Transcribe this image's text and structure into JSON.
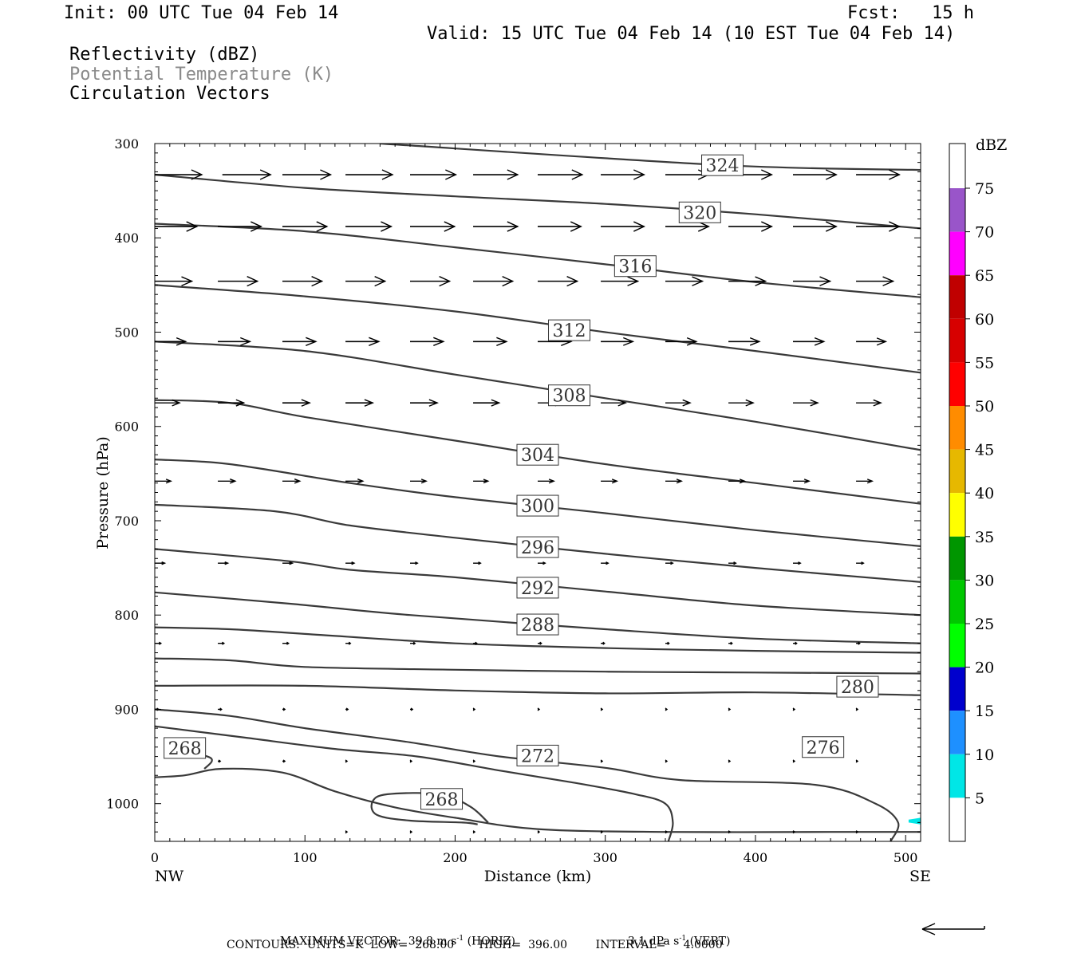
{
  "header": {
    "init": "Init: 00 UTC Tue 04 Feb 14",
    "fcst_label": "Fcst:",
    "fcst_value": "15 h",
    "valid": "Valid: 15 UTC Tue 04 Feb 14 (10 EST Tue 04 Feb 14)",
    "field1": "Reflectivity (dBZ)",
    "field2": "Potential Temperature (K)",
    "field3": "Circulation Vectors"
  },
  "footer": {
    "max_vector_label": "MAXIMUM VECTOR:",
    "horiz_value": "39.8 m s",
    "horiz_exp": "-1",
    "horiz_tag": "(HORIZ)",
    "vert_value": "3.1 dPa s",
    "vert_exp": "-1",
    "vert_tag": "(VERT)",
    "contours_line": "CONTOURS:  UNITS=K  LOW=  268.00       HIGH=  396.00        INTERVAL=     4.0000"
  },
  "colors": {
    "contour": "#3a3a3a",
    "vector": "#000000",
    "dbz_scale": [
      "#ffffff",
      "#00e6e6",
      "#1e90ff",
      "#0000cd",
      "#00ff00",
      "#00c800",
      "#009600",
      "#ffff00",
      "#e6b800",
      "#ff8c00",
      "#ff0000",
      "#d70000",
      "#c00000",
      "#ff00ff",
      "#9955c9",
      "#ffffff"
    ]
  },
  "chart_data": {
    "type": "contour",
    "xlabel": "Distance (km)",
    "ylabel": "Pressure (hPa)",
    "x_left_label": "NW",
    "x_right_label": "SE",
    "xlim": [
      0,
      510
    ],
    "ylim": [
      300,
      1040
    ],
    "x_ticks": [
      0,
      100,
      200,
      300,
      400,
      500
    ],
    "y_ticks": [
      300,
      400,
      500,
      600,
      700,
      800,
      900,
      1000
    ],
    "colorbar": {
      "title": "dBZ",
      "levels": [
        5,
        10,
        15,
        20,
        25,
        30,
        35,
        40,
        45,
        50,
        55,
        60,
        65,
        70,
        75
      ]
    },
    "isentropes": [
      {
        "label": "324",
        "label_at": [
          378,
          323
        ],
        "points": [
          [
            150,
            300
          ],
          [
            380,
            323
          ],
          [
            510,
            328
          ]
        ]
      },
      {
        "label": "320",
        "label_at": [
          363,
          373
        ],
        "points": [
          [
            0,
            333
          ],
          [
            100,
            347
          ],
          [
            200,
            356
          ],
          [
            300,
            364
          ],
          [
            400,
            375
          ],
          [
            510,
            390
          ]
        ]
      },
      {
        "label": "316",
        "label_at": [
          320,
          430
        ],
        "points": [
          [
            0,
            385
          ],
          [
            100,
            393
          ],
          [
            200,
            410
          ],
          [
            300,
            428
          ],
          [
            400,
            447
          ],
          [
            510,
            463
          ]
        ]
      },
      {
        "label": "312",
        "label_at": [
          276,
          498
        ],
        "points": [
          [
            0,
            450
          ],
          [
            100,
            462
          ],
          [
            200,
            478
          ],
          [
            300,
            500
          ],
          [
            400,
            520
          ],
          [
            510,
            543
          ]
        ]
      },
      {
        "label": "308",
        "label_at": [
          276,
          567
        ],
        "points": [
          [
            0,
            510
          ],
          [
            100,
            520
          ],
          [
            200,
            545
          ],
          [
            300,
            570
          ],
          [
            400,
            595
          ],
          [
            510,
            625
          ]
        ]
      },
      {
        "label": "304",
        "label_at": [
          255,
          630
        ],
        "points": [
          [
            0,
            572
          ],
          [
            50,
            575
          ],
          [
            100,
            590
          ],
          [
            200,
            615
          ],
          [
            300,
            640
          ],
          [
            400,
            660
          ],
          [
            510,
            682
          ]
        ]
      },
      {
        "label": "300",
        "label_at": [
          255,
          684
        ],
        "points": [
          [
            0,
            635
          ],
          [
            50,
            640
          ],
          [
            130,
            660
          ],
          [
            200,
            675
          ],
          [
            300,
            692
          ],
          [
            400,
            710
          ],
          [
            510,
            727
          ]
        ]
      },
      {
        "label": "296",
        "label_at": [
          255,
          728
        ],
        "points": [
          [
            0,
            683
          ],
          [
            80,
            690
          ],
          [
            130,
            705
          ],
          [
            200,
            718
          ],
          [
            300,
            735
          ],
          [
            400,
            750
          ],
          [
            510,
            765
          ]
        ]
      },
      {
        "label": "292",
        "label_at": [
          255,
          771
        ],
        "points": [
          [
            0,
            730
          ],
          [
            90,
            743
          ],
          [
            130,
            752
          ],
          [
            200,
            760
          ],
          [
            300,
            775
          ],
          [
            400,
            790
          ],
          [
            510,
            800
          ]
        ]
      },
      {
        "label": "288",
        "label_at": [
          255,
          810
        ],
        "points": [
          [
            0,
            776
          ],
          [
            90,
            788
          ],
          [
            170,
            800
          ],
          [
            300,
            815
          ],
          [
            400,
            825
          ],
          [
            510,
            830
          ]
        ]
      },
      {
        "label": "",
        "label_at": null,
        "points": [
          [
            0,
            813
          ],
          [
            50,
            815
          ],
          [
            100,
            820
          ],
          [
            200,
            830
          ],
          [
            300,
            835
          ],
          [
            400,
            838
          ],
          [
            510,
            840
          ]
        ]
      },
      {
        "label": "",
        "label_at": null,
        "points": [
          [
            0,
            846
          ],
          [
            50,
            848
          ],
          [
            100,
            855
          ],
          [
            200,
            858
          ],
          [
            300,
            860
          ],
          [
            400,
            861
          ],
          [
            510,
            862
          ]
        ]
      },
      {
        "label": "280",
        "label_at": [
          468,
          876
        ],
        "points": [
          [
            0,
            875
          ],
          [
            100,
            875
          ],
          [
            200,
            880
          ],
          [
            300,
            883
          ],
          [
            400,
            882
          ],
          [
            510,
            885
          ]
        ]
      },
      {
        "label": "276",
        "label_at": [
          445,
          940
        ],
        "points": [
          [
            0,
            900
          ],
          [
            50,
            907
          ],
          [
            100,
            920
          ],
          [
            170,
            935
          ],
          [
            230,
            950
          ],
          [
            300,
            962
          ],
          [
            350,
            975
          ],
          [
            440,
            980
          ],
          [
            480,
            1000
          ],
          [
            495,
            1020
          ],
          [
            490,
            1040
          ]
        ]
      },
      {
        "label": "272",
        "label_at": [
          255,
          949
        ],
        "points": [
          [
            0,
            918
          ],
          [
            60,
            930
          ],
          [
            120,
            942
          ],
          [
            175,
            950
          ],
          [
            230,
            965
          ],
          [
            280,
            978
          ],
          [
            320,
            990
          ],
          [
            340,
            1000
          ],
          [
            345,
            1020
          ],
          [
            342,
            1040
          ]
        ]
      },
      {
        "label": "268",
        "label_at": [
          20,
          941
        ],
        "points": [
          [
            20,
            945
          ],
          [
            35,
            950
          ],
          [
            38,
            955
          ],
          [
            33,
            963
          ]
        ]
      },
      {
        "label": "268",
        "label_at": [
          191,
          995
        ],
        "points": [
          [
            222,
            1020
          ],
          [
            210,
            1003
          ],
          [
            190,
            990
          ],
          [
            155,
            990
          ],
          [
            145,
            998
          ],
          [
            148,
            1012
          ],
          [
            170,
            1018
          ],
          [
            205,
            1020
          ],
          [
            215,
            1022
          ]
        ]
      },
      {
        "label": "",
        "label_at": null,
        "points": [
          [
            0,
            972
          ],
          [
            20,
            970
          ],
          [
            45,
            963
          ],
          [
            85,
            967
          ],
          [
            120,
            987
          ],
          [
            160,
            1004
          ],
          [
            200,
            1015
          ],
          [
            255,
            1027
          ],
          [
            340,
            1030
          ],
          [
            450,
            1030
          ],
          [
            510,
            1030
          ]
        ]
      }
    ],
    "vector_rows": [
      {
        "p": 333,
        "x": [
          0,
          45,
          85,
          127,
          170,
          212,
          255,
          297,
          340,
          382,
          425,
          467
        ],
        "u": [
          38,
          39,
          39,
          38,
          37,
          36,
          36,
          35,
          35,
          35,
          35,
          35
        ]
      },
      {
        "p": 388,
        "x": [
          0,
          42,
          85,
          127,
          170,
          212,
          255,
          297,
          340,
          382,
          425,
          467
        ],
        "u": [
          34,
          35,
          36,
          37,
          36,
          36,
          35,
          35,
          35,
          35,
          35,
          35
        ]
      },
      {
        "p": 446,
        "x": [
          0,
          42,
          85,
          127,
          170,
          212,
          255,
          297,
          340,
          382,
          425,
          467
        ],
        "u": [
          30,
          32,
          32,
          32,
          32,
          32,
          32,
          30,
          30,
          30,
          30,
          30
        ]
      },
      {
        "p": 510,
        "x": [
          0,
          42,
          85,
          127,
          170,
          212,
          255,
          297,
          340,
          382,
          425,
          467
        ],
        "u": [
          25,
          26,
          27,
          27,
          27,
          27,
          27,
          26,
          25,
          25,
          25,
          24
        ]
      },
      {
        "p": 575,
        "x": [
          0,
          42,
          85,
          127,
          170,
          212,
          255,
          297,
          340,
          382,
          425,
          467
        ],
        "u": [
          20,
          21,
          22,
          22,
          22,
          21,
          20,
          20,
          20,
          20,
          20,
          20
        ]
      },
      {
        "p": 658,
        "x": [
          0,
          42,
          85,
          127,
          170,
          212,
          255,
          297,
          340,
          382,
          425,
          467
        ],
        "u": [
          13,
          14,
          14,
          14,
          13,
          12,
          13,
          13,
          13,
          13,
          13,
          13
        ]
      },
      {
        "p": 745,
        "x": [
          0,
          42,
          85,
          127,
          170,
          212,
          255,
          297,
          340,
          382,
          425,
          467
        ],
        "u": [
          8,
          8,
          8,
          7,
          6,
          6,
          6,
          6,
          6,
          6,
          6,
          6
        ]
      },
      {
        "p": 830,
        "x": [
          0,
          42,
          85,
          127,
          170,
          212,
          255,
          297,
          340,
          382,
          425,
          467
        ],
        "u": [
          5,
          5,
          5,
          4,
          4,
          3,
          3,
          3,
          3,
          3,
          3,
          3
        ]
      },
      {
        "p": 900,
        "x": [
          0,
          42,
          85,
          127,
          170,
          212,
          255,
          297,
          340,
          382,
          425,
          467
        ],
        "u": [
          3,
          3,
          2,
          2,
          2,
          1,
          1,
          1,
          1,
          1,
          1,
          1
        ]
      },
      {
        "p": 955,
        "x": [
          42,
          85,
          127,
          170,
          212,
          255,
          297,
          340,
          382,
          425,
          467
        ],
        "u": [
          2,
          2,
          1,
          1,
          1,
          1,
          1,
          1,
          1,
          1,
          1
        ]
      },
      {
        "p": 1030,
        "x": [
          127,
          170,
          212,
          255,
          297,
          340,
          382,
          425,
          467
        ],
        "u": [
          1,
          1,
          1,
          1,
          1,
          1,
          1,
          1,
          1
        ]
      }
    ],
    "reflectivity_patches": [
      {
        "dbz": 5,
        "points": [
          [
            502,
            1017
          ],
          [
            510,
            1015
          ],
          [
            510,
            1022
          ],
          [
            502,
            1020
          ]
        ]
      }
    ]
  }
}
